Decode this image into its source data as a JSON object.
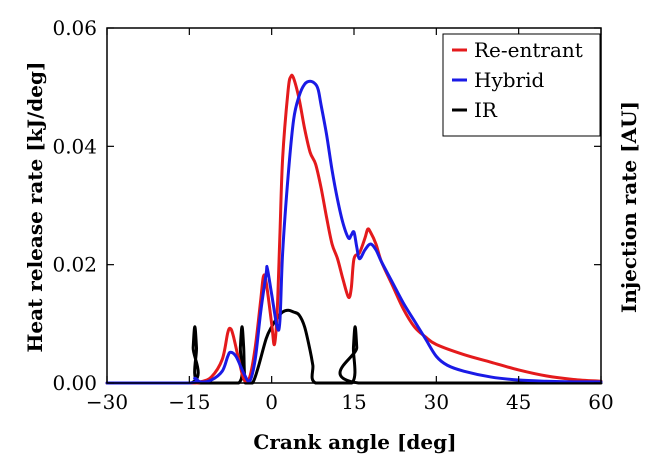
{
  "chart_data": {
    "type": "line",
    "xlabel": "Crank angle [deg]",
    "ylabel": "Heat release rate [kJ/deg]",
    "ylabel_right": "Injection rate [AU]",
    "xlim": [
      -30,
      60
    ],
    "ylim": [
      0,
      0.06
    ],
    "xticks": [
      "-30",
      "-15",
      "0",
      "15",
      "30",
      "45",
      "60"
    ],
    "yticks": [
      "0.00",
      "0.02",
      "0.04",
      "0.06"
    ],
    "grid": false,
    "legend_position": "top-right",
    "series": [
      {
        "name": "Re-entrant",
        "color": "#e41a1c",
        "axis": "left",
        "points": [
          [
            -30,
            0
          ],
          [
            -15,
            0
          ],
          [
            -13,
            0.0002
          ],
          [
            -11,
            0.001
          ],
          [
            -9,
            0.004
          ],
          [
            -8,
            0.0085
          ],
          [
            -7.5,
            0.0092
          ],
          [
            -7,
            0.008
          ],
          [
            -6,
            0.004
          ],
          [
            -5,
            0.0005
          ],
          [
            -4,
            0.001
          ],
          [
            -3,
            0.006
          ],
          [
            -2,
            0.014
          ],
          [
            -1.5,
            0.018
          ],
          [
            -1,
            0.017
          ],
          [
            0,
            0.01
          ],
          [
            0.5,
            0.0065
          ],
          [
            1,
            0.012
          ],
          [
            1.5,
            0.025
          ],
          [
            2,
            0.038
          ],
          [
            3,
            0.0495
          ],
          [
            3.5,
            0.0518
          ],
          [
            4,
            0.0515
          ],
          [
            5,
            0.048
          ],
          [
            6,
            0.043
          ],
          [
            7,
            0.039
          ],
          [
            8,
            0.037
          ],
          [
            9,
            0.033
          ],
          [
            10,
            0.028
          ],
          [
            11,
            0.0235
          ],
          [
            12,
            0.021
          ],
          [
            13,
            0.0175
          ],
          [
            14,
            0.0145
          ],
          [
            14.5,
            0.016
          ],
          [
            15,
            0.021
          ],
          [
            16,
            0.022
          ],
          [
            17,
            0.0245
          ],
          [
            17.5,
            0.026
          ],
          [
            18,
            0.0255
          ],
          [
            19,
            0.0235
          ],
          [
            20,
            0.0205
          ],
          [
            22,
            0.0165
          ],
          [
            24,
            0.0125
          ],
          [
            26,
            0.0095
          ],
          [
            28,
            0.0078
          ],
          [
            30,
            0.0065
          ],
          [
            35,
            0.0048
          ],
          [
            40,
            0.0035
          ],
          [
            45,
            0.0022
          ],
          [
            50,
            0.0012
          ],
          [
            55,
            0.0006
          ],
          [
            60,
            0.0003
          ]
        ]
      },
      {
        "name": "Hybrid",
        "color": "#1a1ae6",
        "axis": "left",
        "points": [
          [
            -30,
            0
          ],
          [
            -15,
            0
          ],
          [
            -14,
            0.0008
          ],
          [
            -13,
            0.0002
          ],
          [
            -11,
            0.0005
          ],
          [
            -9,
            0.002
          ],
          [
            -8,
            0.0045
          ],
          [
            -7.5,
            0.0052
          ],
          [
            -6.5,
            0.0045
          ],
          [
            -5,
            0.0015
          ],
          [
            -4,
            0.0003
          ],
          [
            -3,
            0.004
          ],
          [
            -2,
            0.012
          ],
          [
            -1,
            0.0185
          ],
          [
            -0.8,
            0.0194
          ],
          [
            0,
            0.015
          ],
          [
            1,
            0.0095
          ],
          [
            1.5,
            0.0105
          ],
          [
            2,
            0.022
          ],
          [
            3,
            0.035
          ],
          [
            4,
            0.0445
          ],
          [
            5,
            0.0485
          ],
          [
            6,
            0.0505
          ],
          [
            7,
            0.051
          ],
          [
            8,
            0.0505
          ],
          [
            8.5,
            0.0495
          ],
          [
            9,
            0.047
          ],
          [
            10,
            0.042
          ],
          [
            11,
            0.036
          ],
          [
            12,
            0.031
          ],
          [
            13,
            0.027
          ],
          [
            14,
            0.0245
          ],
          [
            14.5,
            0.025
          ],
          [
            15,
            0.0255
          ],
          [
            15.5,
            0.023
          ],
          [
            16,
            0.021
          ],
          [
            17,
            0.0225
          ],
          [
            18,
            0.0235
          ],
          [
            19,
            0.0225
          ],
          [
            20,
            0.0205
          ],
          [
            22,
            0.017
          ],
          [
            24,
            0.0135
          ],
          [
            26,
            0.0105
          ],
          [
            28,
            0.0075
          ],
          [
            30,
            0.0045
          ],
          [
            32,
            0.003
          ],
          [
            35,
            0.002
          ],
          [
            40,
            0.001
          ],
          [
            45,
            0.0005
          ],
          [
            50,
            0.0003
          ],
          [
            55,
            0.0002
          ],
          [
            60,
            0.0002
          ]
        ]
      },
      {
        "name": "IR",
        "color": "#000000",
        "axis": "right",
        "points": [
          [
            -30,
            0
          ],
          [
            -14.6,
            0
          ],
          [
            -14.3,
            0.006
          ],
          [
            -14,
            0.0095
          ],
          [
            -13.7,
            0.006
          ],
          [
            -13.4,
            0
          ],
          [
            -6,
            0
          ],
          [
            -5.7,
            0.006
          ],
          [
            -5.4,
            0.0095
          ],
          [
            -5.1,
            0.006
          ],
          [
            -4.8,
            0
          ],
          [
            -3.5,
            0
          ],
          [
            -2.5,
            0.0025
          ],
          [
            -1,
            0.0075
          ],
          [
            0,
            0.0095
          ],
          [
            1,
            0.011
          ],
          [
            2,
            0.012
          ],
          [
            3,
            0.0123
          ],
          [
            4,
            0.012
          ],
          [
            5,
            0.0115
          ],
          [
            6,
            0.0095
          ],
          [
            7,
            0.0055
          ],
          [
            7.5,
            0.003
          ],
          [
            8,
            0
          ],
          [
            14.6,
            0
          ],
          [
            14.9,
            0.006
          ],
          [
            15.2,
            0.0095
          ],
          [
            15.5,
            0.006
          ],
          [
            15.8,
            0
          ],
          [
            60,
            0
          ]
        ]
      }
    ]
  }
}
